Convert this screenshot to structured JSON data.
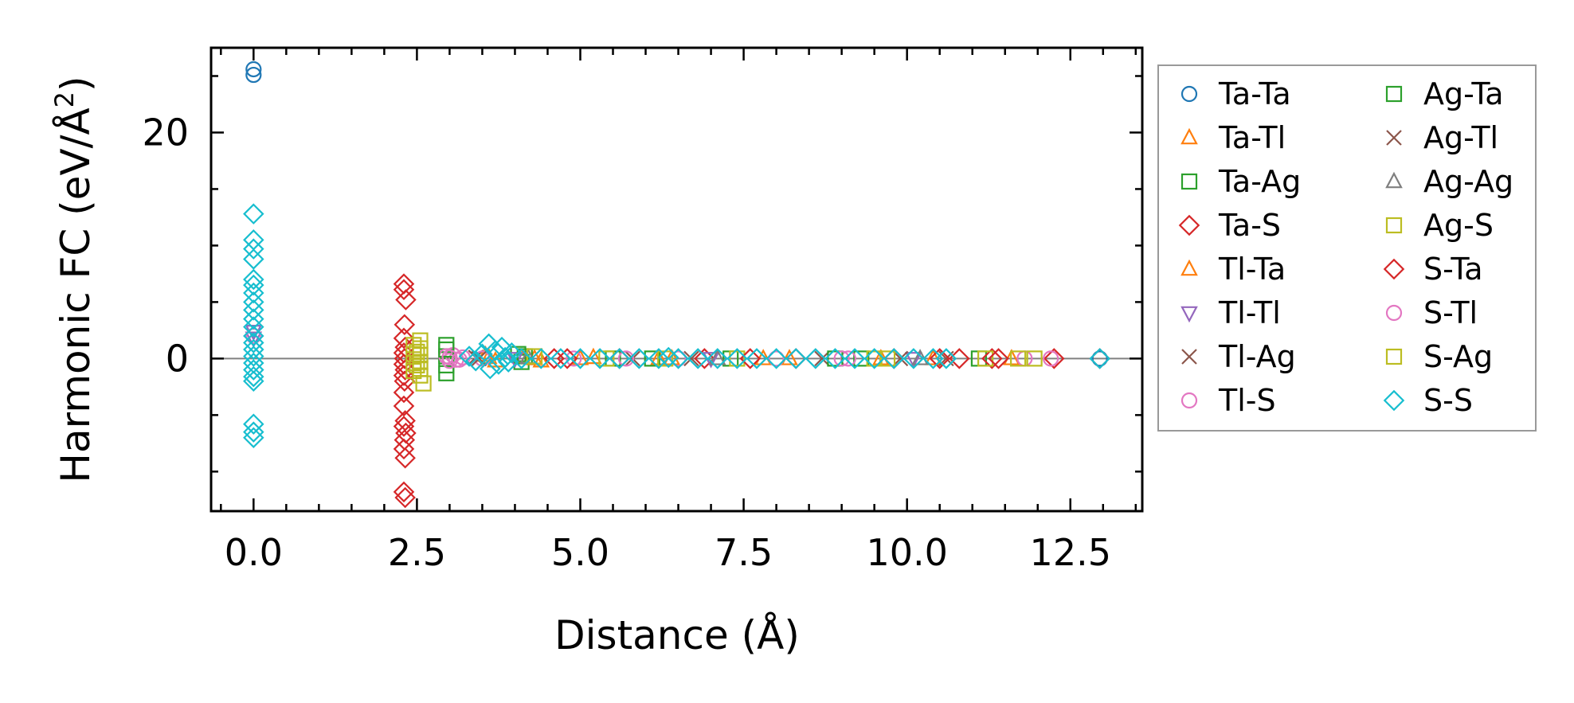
{
  "chart_data": {
    "type": "scatter",
    "xlabel": "Distance (Å)",
    "ylabel": "Harmonic FC (eV/Å",
    "ylabel_superscript": "2",
    "ylabel_suffix": ")",
    "xlim": [
      -0.65,
      13.6
    ],
    "ylim": [
      -13.5,
      27.5
    ],
    "x_ticks": [
      0.0,
      2.5,
      5.0,
      7.5,
      10.0,
      12.5
    ],
    "x_tick_labels": [
      "0.0",
      "2.5",
      "5.0",
      "7.5",
      "10.0",
      "12.5"
    ],
    "y_ticks": [
      0,
      20
    ],
    "y_tick_labels": [
      "0",
      "20"
    ],
    "x_minor_step": 0.5,
    "y_minor_step": 5,
    "zero_line": true,
    "legend_position": "outside-right",
    "series": [
      {
        "name": "Ta-Ta",
        "color": "#1f77b4",
        "marker": "circle",
        "points": [
          [
            0,
            25.6
          ],
          [
            0,
            25.1
          ],
          [
            12.95,
            0
          ]
        ]
      },
      {
        "name": "Ta-Tl",
        "color": "#ff7f0e",
        "marker": "triangle-up",
        "points": [
          [
            3.55,
            0.3
          ],
          [
            3.7,
            -0.2
          ],
          [
            4.1,
            0.1
          ],
          [
            4.4,
            -0.2
          ],
          [
            5.2,
            0.1
          ],
          [
            6.4,
            0
          ],
          [
            8.2,
            0
          ],
          [
            10.4,
            0
          ]
        ]
      },
      {
        "name": "Ta-Ag",
        "color": "#2ca02c",
        "marker": "square",
        "points": [
          [
            2.95,
            1.2
          ],
          [
            2.95,
            0.2
          ],
          [
            2.95,
            -0.6
          ],
          [
            2.95,
            -1.3
          ],
          [
            4.05,
            0.4
          ],
          [
            4.1,
            -0.3
          ],
          [
            5.5,
            0
          ],
          [
            7.3,
            0
          ],
          [
            9.3,
            0
          ],
          [
            11.1,
            0
          ]
        ]
      },
      {
        "name": "Ta-S",
        "color": "#d62728",
        "marker": "diamond",
        "points": [
          [
            2.3,
            6.6
          ],
          [
            2.3,
            6.1
          ],
          [
            2.33,
            5.2
          ],
          [
            2.3,
            1.8
          ],
          [
            2.32,
            1.0
          ],
          [
            2.3,
            0.5
          ],
          [
            2.31,
            0
          ],
          [
            2.3,
            -0.5
          ],
          [
            2.32,
            -1.0
          ],
          [
            2.3,
            -1.5
          ],
          [
            2.31,
            -2.0
          ],
          [
            2.3,
            -4.2
          ],
          [
            2.32,
            -5.5
          ],
          [
            2.3,
            -6.0
          ],
          [
            2.33,
            -6.6
          ],
          [
            2.31,
            -7.2
          ],
          [
            2.3,
            -8.0
          ],
          [
            2.32,
            -8.8
          ],
          [
            2.3,
            -11.8
          ],
          [
            2.32,
            -12.3
          ],
          [
            4.6,
            0
          ],
          [
            5.6,
            0
          ],
          [
            6.9,
            0
          ],
          [
            8.3,
            0
          ],
          [
            9.8,
            0
          ],
          [
            10.8,
            0
          ],
          [
            11.3,
            0
          ],
          [
            12.25,
            0
          ],
          [
            12.95,
            0
          ]
        ]
      },
      {
        "name": "Tl-Ta",
        "color": "#ff7f0e",
        "marker": "triangle-up",
        "points": [
          [
            3.6,
            0.1
          ],
          [
            4.3,
            0
          ],
          [
            5.0,
            0
          ],
          [
            6.2,
            0
          ],
          [
            7.8,
            0
          ],
          [
            9.6,
            0
          ],
          [
            11.6,
            0
          ]
        ]
      },
      {
        "name": "Tl-Tl",
        "color": "#9467bd",
        "marker": "triangle-down",
        "points": [
          [
            0,
            2.4
          ],
          [
            0,
            1.8
          ],
          [
            4.0,
            0
          ],
          [
            7.0,
            0
          ],
          [
            10.1,
            0
          ]
        ]
      },
      {
        "name": "Tl-Ag",
        "color": "#8c564b",
        "marker": "x",
        "points": [
          [
            3.4,
            0.1
          ],
          [
            5.8,
            0
          ],
          [
            8.7,
            0
          ],
          [
            10.6,
            0
          ]
        ]
      },
      {
        "name": "Tl-S",
        "color": "#e377c2",
        "marker": "circle",
        "points": [
          [
            2.95,
            0.2
          ],
          [
            3.0,
            -0.2
          ],
          [
            3.05,
            0.3
          ],
          [
            3.1,
            -0.1
          ],
          [
            3.2,
            0.1
          ],
          [
            3.5,
            0
          ],
          [
            4.9,
            0
          ],
          [
            6.5,
            0
          ],
          [
            8.0,
            0
          ],
          [
            9.1,
            0
          ],
          [
            11.8,
            0
          ],
          [
            12.2,
            0
          ]
        ]
      },
      {
        "name": "Ag-Ta",
        "color": "#2ca02c",
        "marker": "square",
        "points": [
          [
            2.95,
            0.8
          ],
          [
            4.15,
            0.2
          ],
          [
            6.1,
            0
          ],
          [
            8.9,
            0
          ]
        ]
      },
      {
        "name": "Ag-Tl",
        "color": "#8c564b",
        "marker": "x",
        "points": [
          [
            3.45,
            0
          ],
          [
            6.7,
            0
          ],
          [
            9.9,
            0
          ]
        ]
      },
      {
        "name": "Ag-Ag",
        "color": "#7f7f7f",
        "marker": "triangle-up",
        "points": [
          [
            4.2,
            0.1
          ],
          [
            7.1,
            0
          ],
          [
            10.2,
            0
          ]
        ]
      },
      {
        "name": "Ag-S",
        "color": "#bcbd22",
        "marker": "square",
        "points": [
          [
            2.55,
            1.6
          ],
          [
            2.55,
            0.9
          ],
          [
            2.55,
            0.3
          ],
          [
            2.55,
            -0.3
          ],
          [
            2.55,
            -0.9
          ],
          [
            2.55,
            -1.5
          ],
          [
            2.6,
            -2.2
          ],
          [
            2.45,
            1.2
          ],
          [
            2.45,
            0.4
          ],
          [
            2.45,
            -0.4
          ],
          [
            2.45,
            -1.1
          ],
          [
            4.3,
            0.2
          ],
          [
            5.4,
            0
          ],
          [
            7.4,
            0
          ],
          [
            9.5,
            0
          ],
          [
            11.2,
            0
          ],
          [
            11.95,
            0
          ]
        ]
      },
      {
        "name": "S-Ta",
        "color": "#d62728",
        "marker": "diamond",
        "points": [
          [
            2.31,
            3.0
          ],
          [
            2.3,
            -3.0
          ],
          [
            4.8,
            0
          ],
          [
            7.6,
            0
          ],
          [
            10.5,
            0
          ],
          [
            11.4,
            0
          ]
        ]
      },
      {
        "name": "S-Tl",
        "color": "#e377c2",
        "marker": "circle",
        "points": [
          [
            0,
            2.0
          ],
          [
            3.0,
            0.1
          ],
          [
            3.15,
            -0.1
          ],
          [
            5.7,
            0
          ],
          [
            9.0,
            0
          ]
        ]
      },
      {
        "name": "S-Ag",
        "color": "#bcbd22",
        "marker": "square",
        "points": [
          [
            2.5,
            0.6
          ],
          [
            2.5,
            -0.6
          ],
          [
            6.3,
            0
          ],
          [
            9.7,
            0
          ],
          [
            11.7,
            0
          ]
        ]
      },
      {
        "name": "S-S",
        "color": "#17becf",
        "marker": "diamond",
        "points": [
          [
            0,
            12.8
          ],
          [
            0,
            10.5
          ],
          [
            0,
            9.7
          ],
          [
            0,
            8.8
          ],
          [
            0,
            7.0
          ],
          [
            0,
            6.5
          ],
          [
            0,
            5.8
          ],
          [
            0,
            5.0
          ],
          [
            0,
            4.3
          ],
          [
            0,
            3.5
          ],
          [
            0,
            2.8
          ],
          [
            0,
            2.0
          ],
          [
            0,
            1.4
          ],
          [
            0,
            0.8
          ],
          [
            0,
            0.2
          ],
          [
            0,
            -0.4
          ],
          [
            0,
            -1.0
          ],
          [
            0,
            -1.6
          ],
          [
            0,
            -2.0
          ],
          [
            0,
            -5.8
          ],
          [
            0,
            -6.5
          ],
          [
            0,
            -7.0
          ],
          [
            3.3,
            0.2
          ],
          [
            3.4,
            -0.2
          ],
          [
            3.5,
            0.4
          ],
          [
            3.6,
            1.3
          ],
          [
            3.62,
            -0.9
          ],
          [
            3.7,
            0.7
          ],
          [
            3.75,
            -0.5
          ],
          [
            3.8,
            1.0
          ],
          [
            3.85,
            0.1
          ],
          [
            3.9,
            -0.3
          ],
          [
            3.95,
            0.5
          ],
          [
            4.1,
            0
          ],
          [
            4.4,
            0
          ],
          [
            4.7,
            0
          ],
          [
            5.0,
            0
          ],
          [
            5.3,
            0
          ],
          [
            5.6,
            0
          ],
          [
            5.9,
            0
          ],
          [
            6.2,
            0
          ],
          [
            6.35,
            0.1
          ],
          [
            6.5,
            0
          ],
          [
            6.8,
            0
          ],
          [
            7.1,
            0
          ],
          [
            7.4,
            0
          ],
          [
            7.7,
            0
          ],
          [
            8.0,
            0
          ],
          [
            8.3,
            0
          ],
          [
            8.6,
            0
          ],
          [
            8.9,
            0
          ],
          [
            9.2,
            0
          ],
          [
            9.5,
            0
          ],
          [
            9.8,
            0
          ],
          [
            10.1,
            0
          ],
          [
            10.4,
            0
          ],
          [
            10.6,
            0
          ],
          [
            12.95,
            0
          ]
        ]
      }
    ]
  }
}
